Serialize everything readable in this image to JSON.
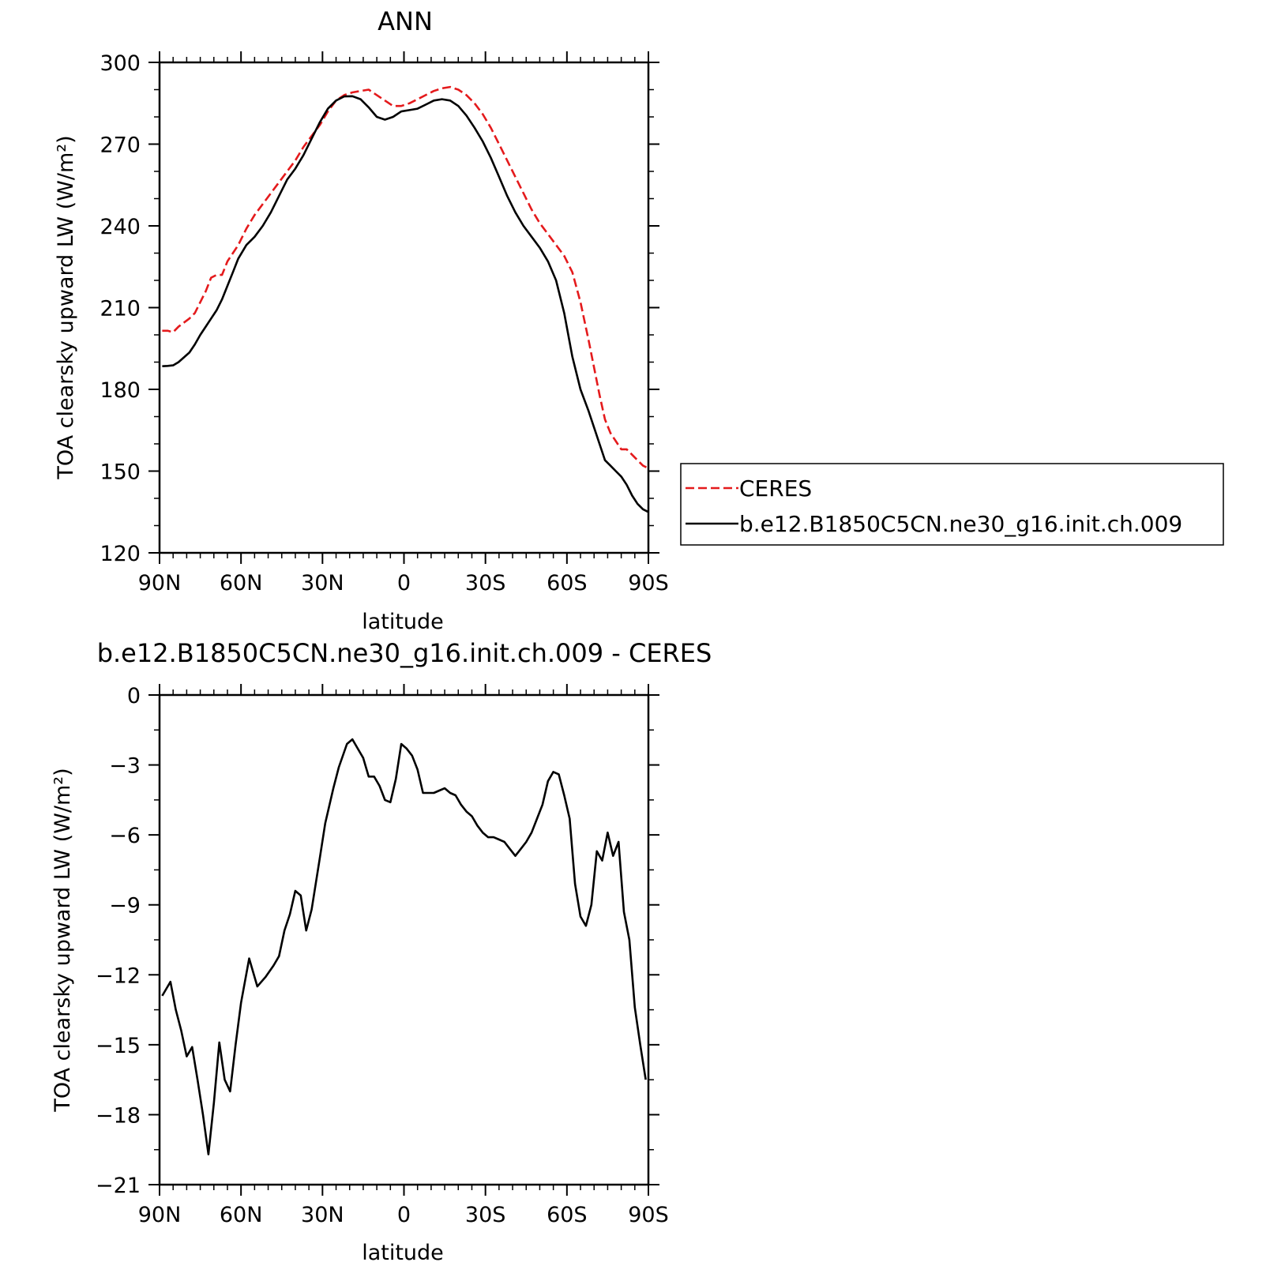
{
  "chart_data": [
    {
      "type": "line",
      "title": "ANN",
      "xlabel": "latitude",
      "ylabel": "TOA clearsky upward LW (W/m²)",
      "x_axis_direction": "90N to 90S (latitude, positive = north)",
      "xlim": [
        90,
        -90
      ],
      "ylim": [
        120,
        300
      ],
      "x_ticks": [
        {
          "value": 90,
          "label": "90N"
        },
        {
          "value": 60,
          "label": "60N"
        },
        {
          "value": 30,
          "label": "30N"
        },
        {
          "value": 0,
          "label": "0"
        },
        {
          "value": -30,
          "label": "30S"
        },
        {
          "value": -60,
          "label": "60S"
        },
        {
          "value": -90,
          "label": "90S"
        }
      ],
      "y_ticks": [
        {
          "value": 300,
          "label": "300"
        },
        {
          "value": 270,
          "label": "270"
        },
        {
          "value": 240,
          "label": "240"
        },
        {
          "value": 210,
          "label": "210"
        },
        {
          "value": 180,
          "label": "180"
        },
        {
          "value": 150,
          "label": "150"
        },
        {
          "value": 120,
          "label": "120"
        }
      ],
      "legend": {
        "placement": "right-outside",
        "entries": [
          {
            "label": "CERES",
            "color": "#e41a1c",
            "style": "dashed"
          },
          {
            "label": "b.e12.B1850C5CN.ne30_g16.init.ch.009",
            "color": "#000000",
            "style": "solid"
          }
        ]
      },
      "series": [
        {
          "name": "CERES",
          "color": "#e41a1c",
          "style": "dashed",
          "x": [
            89,
            87,
            85,
            83,
            79,
            77,
            75,
            73,
            71,
            69,
            67,
            65,
            63,
            61,
            58,
            55,
            52,
            49,
            46,
            43,
            40,
            37,
            34,
            31,
            28,
            25,
            22,
            19,
            16,
            13,
            10,
            7,
            4,
            1,
            -2,
            -5,
            -8,
            -11,
            -14,
            -17,
            -20,
            -23,
            -26,
            -29,
            -32,
            -35,
            -38,
            -41,
            -44,
            -47,
            -50,
            -53,
            -56,
            -59,
            -62,
            -65,
            -68,
            -70,
            -72,
            -74,
            -76,
            -78,
            -80,
            -82,
            -84,
            -86,
            -88,
            -90
          ],
          "y": [
            201.5,
            201.5,
            201,
            203,
            206,
            208,
            212,
            216,
            221,
            222,
            222,
            227,
            230,
            233,
            239,
            244,
            248,
            252,
            256,
            260,
            264,
            269,
            273,
            277,
            282,
            286,
            288,
            289,
            289.5,
            290,
            288,
            286,
            284,
            284,
            285,
            286.5,
            288,
            289.5,
            290.5,
            291,
            290,
            288,
            285,
            281,
            276,
            270,
            264,
            258,
            252,
            246,
            241,
            237,
            233,
            229,
            223,
            212,
            198,
            188,
            178,
            169,
            164,
            161,
            158,
            158,
            156,
            154,
            152,
            151
          ]
        },
        {
          "name": "b.e12.B1850C5CN.ne30_g16.init.ch.009",
          "color": "#000000",
          "style": "solid",
          "x": [
            89,
            87,
            85,
            83,
            79,
            77,
            75,
            73,
            71,
            69,
            67,
            65,
            63,
            61,
            58,
            55,
            52,
            49,
            46,
            43,
            40,
            37,
            34,
            31,
            28,
            25,
            22,
            19,
            16,
            13,
            10,
            7,
            4,
            1,
            -2,
            -5,
            -8,
            -11,
            -14,
            -17,
            -20,
            -23,
            -26,
            -29,
            -32,
            -35,
            -38,
            -41,
            -44,
            -47,
            -50,
            -53,
            -56,
            -59,
            -62,
            -65,
            -68,
            -70,
            -72,
            -74,
            -76,
            -78,
            -80,
            -82,
            -84,
            -86,
            -88,
            -90
          ],
          "y": [
            188.5,
            188.6,
            188.8,
            190,
            193.5,
            196.5,
            200,
            203,
            206,
            209,
            213,
            218,
            223,
            228,
            233,
            236,
            240,
            245,
            251,
            257,
            261,
            266,
            272,
            278,
            283,
            286,
            287.5,
            287.6,
            286.5,
            283.5,
            280,
            279,
            280,
            282,
            282.5,
            283,
            284.5,
            286,
            286.5,
            286,
            284,
            280.5,
            276,
            271,
            265,
            258,
            251,
            245,
            240,
            236,
            232,
            227,
            220,
            208,
            192,
            180,
            172,
            166,
            160,
            154,
            152,
            150,
            148,
            145,
            141,
            138,
            136,
            135
          ]
        }
      ]
    },
    {
      "type": "line",
      "title": "b.e12.B1850C5CN.ne30_g16.init.ch.009 - CERES",
      "xlabel": "latitude",
      "ylabel": "TOA clearsky upward LW (W/m²)",
      "x_axis_direction": "90N to 90S (latitude, positive = north)",
      "xlim": [
        90,
        -90
      ],
      "ylim": [
        -21,
        0
      ],
      "x_ticks": [
        {
          "value": 90,
          "label": "90N"
        },
        {
          "value": 60,
          "label": "60N"
        },
        {
          "value": 30,
          "label": "30N"
        },
        {
          "value": 0,
          "label": "0"
        },
        {
          "value": -30,
          "label": "30S"
        },
        {
          "value": -60,
          "label": "60S"
        },
        {
          "value": -90,
          "label": "90S"
        }
      ],
      "y_ticks": [
        {
          "value": 0,
          "label": "0"
        },
        {
          "value": -3,
          "label": "-3"
        },
        {
          "value": -6,
          "label": "-6"
        },
        {
          "value": -9,
          "label": "-9"
        },
        {
          "value": -12,
          "label": "-12"
        },
        {
          "value": -15,
          "label": "-15"
        },
        {
          "value": -18,
          "label": "-18"
        },
        {
          "value": -21,
          "label": "-21"
        }
      ],
      "series": [
        {
          "color": "#000000",
          "style": "solid",
          "x": [
            89,
            86,
            84,
            82,
            80,
            78,
            76,
            74,
            72,
            70,
            68,
            66,
            64,
            62,
            60,
            57,
            54,
            51,
            48,
            46,
            44,
            42,
            40,
            38,
            36,
            34,
            31,
            29,
            26,
            24,
            21,
            19,
            17,
            15,
            13,
            11,
            9,
            7,
            5,
            3,
            1,
            -1,
            -3,
            -5,
            -7,
            -9,
            -11,
            -13,
            -15,
            -17,
            -19,
            -21,
            -23,
            -25,
            -27,
            -29,
            -31,
            -33,
            -35,
            -37,
            -39,
            -41,
            -43,
            -45,
            -47,
            -49,
            -51,
            -53,
            -55,
            -57,
            -59,
            -61,
            -63,
            -65,
            -67,
            -69,
            -71,
            -73,
            -75,
            -77,
            -79,
            -81,
            -83,
            -85,
            -87,
            -89
          ],
          "y": [
            -12.9,
            -12.3,
            -13.5,
            -14.4,
            -15.5,
            -15.1,
            -16.5,
            -18,
            -19.7,
            -17.5,
            -14.9,
            -16.5,
            -17,
            -15,
            -13.2,
            -11.3,
            -12.5,
            -12.1,
            -11.6,
            -11.2,
            -10.1,
            -9.4,
            -8.4,
            -8.6,
            -10.1,
            -9.2,
            -7,
            -5.5,
            -4,
            -3.1,
            -2.1,
            -1.9,
            -2.3,
            -2.7,
            -3.5,
            -3.5,
            -3.9,
            -4.5,
            -4.6,
            -3.6,
            -2.1,
            -2.3,
            -2.6,
            -3.2,
            -4.2,
            -4.2,
            -4.2,
            -4.1,
            -4,
            -4.2,
            -4.3,
            -4.7,
            -5,
            -5.2,
            -5.6,
            -5.9,
            -6.1,
            -6.1,
            -6.2,
            -6.3,
            -6.6,
            -6.9,
            -6.6,
            -6.3,
            -5.9,
            -5.3,
            -4.7,
            -3.7,
            -3.3,
            -3.4,
            -4.3,
            -5.3,
            -8.1,
            -9.5,
            -9.9,
            -9,
            -6.7,
            -7.1,
            -5.9,
            -6.9,
            -6.3,
            -9.3,
            -10.5,
            -13.4,
            -15,
            -16.5
          ]
        }
      ]
    }
  ]
}
